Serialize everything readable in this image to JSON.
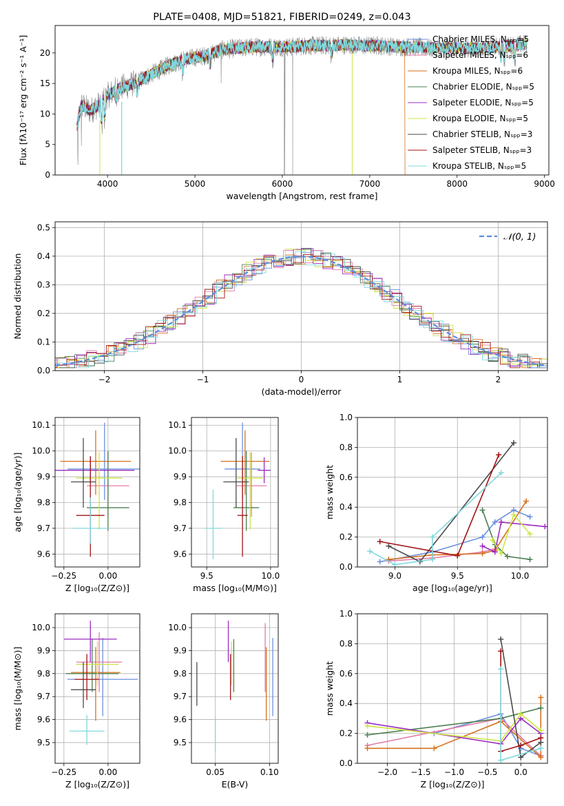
{
  "chart_data": [
    {
      "id": "spectrum",
      "type": "line",
      "title": "PLATE=0408, MJD=51821, FIBERID=0249, z=0.043",
      "xlabel": "wavelength [Angstrom, rest frame]",
      "ylabel": "Flux [fλ10⁻¹⁷ erg cm⁻² s⁻¹ A⁻¹]",
      "xlim": [
        3400,
        9050
      ],
      "ylim": [
        0,
        24.5
      ],
      "xticks": [
        4000,
        5000,
        6000,
        7000,
        8000,
        9000
      ],
      "yticks": [
        0,
        5,
        10,
        15,
        20
      ],
      "grid": false,
      "legend_position": "top-right",
      "series": [
        {
          "name": "Chabrier MILES, Nₛₚₚ=5",
          "color": "#6a8fde"
        },
        {
          "name": "Salpeter MILES, Nₛₚₚ=6",
          "color": "#e37aa6"
        },
        {
          "name": "Kroupa MILES, Nₛₚₚ=6",
          "color": "#d5701c"
        },
        {
          "name": "Chabrier ELODIE, Nₛₚₚ=5",
          "color": "#4b7f52"
        },
        {
          "name": "Salpeter ELODIE, Nₛₚₚ=5",
          "color": "#9b2bc1"
        },
        {
          "name": "Kroupa ELODIE, Nₛₚₚ=5",
          "color": "#cde645"
        },
        {
          "name": "Chabrier STELIB, Nₛₚₚ=3",
          "color": "#4a4a4a"
        },
        {
          "name": "Salpeter STELIB, Nₛₚₚ=3",
          "color": "#a11313"
        },
        {
          "name": "Kroupa STELIB, Nₛₚₚ=5",
          "color": "#7fd8dd"
        }
      ],
      "continuum": {
        "x": [
          3650,
          3700,
          3800,
          3900,
          4000,
          4100,
          4200,
          4300,
          4500,
          4700,
          4900,
          5100,
          5300,
          5500,
          5700,
          5900,
          6100,
          6300,
          6500,
          6700,
          6900,
          7100,
          7300,
          7500,
          7700,
          7900,
          8100,
          8300,
          8500,
          8800
        ],
        "y": [
          8.0,
          11.5,
          10.5,
          11.5,
          13.0,
          14.0,
          14.5,
          15.0,
          16.5,
          18.0,
          19.0,
          19.5,
          20.5,
          20.8,
          21.0,
          21.0,
          21.0,
          21.2,
          21.2,
          21.3,
          21.2,
          21.2,
          21.0,
          21.0,
          20.8,
          20.8,
          20.8,
          20.8,
          21.0,
          21.5
        ]
      },
      "truncated_series": [
        {
          "series": "Kroupa MILES, Nₛₚₚ=6",
          "x_end": 7400
        }
      ]
    },
    {
      "id": "residuals",
      "type": "histogram",
      "xlabel": "(data-model)/error",
      "ylabel": "Normed distribution",
      "xlim": [
        -2.5,
        2.5
      ],
      "ylim": [
        0,
        0.52
      ],
      "xticks": [
        -2,
        -1,
        0,
        1,
        2
      ],
      "yticks": [
        0.0,
        0.1,
        0.2,
        0.3,
        0.4,
        0.5
      ],
      "grid": true,
      "legend_position": "top-right",
      "bin_width": 0.1,
      "reference_curve": {
        "name": "𝒩(0, 1)",
        "color": "#5b8cde",
        "style": "dashed"
      }
    },
    {
      "id": "age-vs-Z",
      "type": "errorbar",
      "xlabel": "Z [log₁₀(Z/Z⊙)]",
      "ylabel": "age  [log₁₀(age/yr)]",
      "xlim": [
        -0.3,
        0.18
      ],
      "ylim": [
        9.55,
        10.13
      ],
      "xticks": [
        -0.25,
        0.0
      ],
      "yticks": [
        9.6,
        9.7,
        9.8,
        9.9,
        10.0,
        10.1
      ],
      "grid": true,
      "points": [
        {
          "color": "#6a8fde",
          "x": -0.02,
          "xerr": 0.21,
          "y": 9.93,
          "yerr": [
            0.12,
            0.18
          ]
        },
        {
          "color": "#e37aa6",
          "x": 0.0,
          "xerr": 0.12,
          "y": 9.865,
          "yerr": [
            0.12,
            0.13
          ]
        },
        {
          "color": "#d5701c",
          "x": -0.07,
          "xerr": 0.2,
          "y": 9.96,
          "yerr": [
            0.13,
            0.12
          ]
        },
        {
          "color": "#4b7f52",
          "x": 0.0,
          "xerr": 0.12,
          "y": 9.78,
          "yerr": [
            0.09,
            0.22
          ]
        },
        {
          "color": "#9b2bc1",
          "x": -0.1,
          "xerr": 0.25,
          "y": 9.925,
          "yerr": [
            0.05,
            0.05
          ]
        },
        {
          "color": "#cde645",
          "x": -0.05,
          "xerr": 0.13,
          "y": 9.895,
          "yerr": [
            0.2,
            0.1
          ]
        },
        {
          "color": "#4a4a4a",
          "x": -0.14,
          "xerr": 0.07,
          "y": 9.88,
          "yerr": [
            0.1,
            0.17
          ]
        },
        {
          "color": "#a11313",
          "x": -0.1,
          "xerr": 0.08,
          "y": 9.75,
          "yerr": [
            0.16,
            0.23
          ]
        },
        {
          "color": "#7fd8dd",
          "x": -0.1,
          "xerr": 0.1,
          "y": 9.7,
          "yerr": [
            0.06,
            0.12
          ]
        }
      ]
    },
    {
      "id": "age-vs-mass",
      "type": "errorbar",
      "xlabel": "mass [log₁₀(M/M⊙)]",
      "ylabel": "",
      "xlim": [
        9.38,
        10.06
      ],
      "ylim": [
        9.55,
        10.13
      ],
      "xticks": [
        9.5,
        10.0
      ],
      "yticks": [
        9.6,
        9.7,
        9.8,
        9.9,
        10.0,
        10.1
      ],
      "grid": true,
      "points": [
        {
          "color": "#6a8fde",
          "x": 9.78,
          "xerr": 0.14,
          "y": 9.93,
          "yerr": [
            0.12,
            0.18
          ]
        },
        {
          "color": "#e37aa6",
          "x": 9.85,
          "xerr": 0.12,
          "y": 9.865,
          "yerr": [
            0.12,
            0.13
          ]
        },
        {
          "color": "#d5701c",
          "x": 9.8,
          "xerr": 0.19,
          "y": 9.96,
          "yerr": [
            0.13,
            0.12
          ]
        },
        {
          "color": "#4b7f52",
          "x": 9.81,
          "xerr": 0.1,
          "y": 9.78,
          "yerr": [
            0.09,
            0.22
          ]
        },
        {
          "color": "#9b2bc1",
          "x": 9.95,
          "xerr": 0.05,
          "y": 9.925,
          "yerr": [
            0.05,
            0.05
          ]
        },
        {
          "color": "#cde645",
          "x": 9.84,
          "xerr": 0.1,
          "y": 9.895,
          "yerr": [
            0.2,
            0.1
          ]
        },
        {
          "color": "#4a4a4a",
          "x": 9.73,
          "xerr": 0.1,
          "y": 9.88,
          "yerr": [
            0.1,
            0.17
          ]
        },
        {
          "color": "#a11313",
          "x": 9.78,
          "xerr": 0.04,
          "y": 9.75,
          "yerr": [
            0.16,
            0.23
          ]
        },
        {
          "color": "#7fd8dd",
          "x": 9.55,
          "xerr": 0.07,
          "y": 9.7,
          "yerr": [
            0.12,
            0.15
          ]
        }
      ]
    },
    {
      "id": "mass-weight-vs-age",
      "type": "line",
      "xlabel": "age  [log₁₀(age/yr)]",
      "ylabel": "mass weight",
      "xlim": [
        8.7,
        10.22
      ],
      "ylim": [
        0,
        1
      ],
      "xticks": [
        9.0,
        9.5,
        10.0
      ],
      "yticks": [
        0.0,
        0.2,
        0.4,
        0.6,
        0.8,
        1.0
      ],
      "grid": true,
      "marker": "+",
      "series": [
        {
          "color": "#6a8fde",
          "x": [
            8.88,
            9.3,
            9.7,
            9.8,
            9.95,
            10.08
          ],
          "y": [
            0.035,
            0.1,
            0.2,
            0.3,
            0.38,
            0.335
          ]
        },
        {
          "color": "#e37aa6",
          "x": [
            8.95,
            9.3,
            9.7,
            9.8
          ],
          "y": [
            0.04,
            0.06,
            0.1,
            0.12
          ]
        },
        {
          "color": "#d5701c",
          "x": [
            8.95,
            9.3,
            9.7,
            9.8,
            10.05
          ],
          "y": [
            0.05,
            0.08,
            0.09,
            0.11,
            0.44
          ]
        },
        {
          "color": "#4b7f52",
          "x": [
            9.7,
            9.8,
            9.9,
            10.08
          ],
          "y": [
            0.38,
            0.15,
            0.07,
            0.05
          ]
        },
        {
          "color": "#9b2bc1",
          "x": [
            9.7,
            9.8,
            9.85,
            10.2
          ],
          "y": [
            0.14,
            0.1,
            0.3,
            0.27
          ]
        },
        {
          "color": "#cde645",
          "x": [
            9.78,
            9.85,
            9.95,
            10.08
          ],
          "y": [
            0.18,
            0.09,
            0.35,
            0.22
          ]
        },
        {
          "color": "#4a4a4a",
          "x": [
            8.95,
            9.2,
            9.95
          ],
          "y": [
            0.14,
            0.035,
            0.83
          ]
        },
        {
          "color": "#a11313",
          "x": [
            8.88,
            9.5,
            9.83
          ],
          "y": [
            0.17,
            0.075,
            0.75
          ]
        },
        {
          "color": "#7fd8dd",
          "x": [
            8.8,
            9.0,
            9.3,
            9.3,
            9.85
          ],
          "y": [
            0.105,
            0.015,
            0.05,
            0.2,
            0.63
          ]
        }
      ]
    },
    {
      "id": "mass-vs-Z",
      "type": "errorbar",
      "xlabel": "Z [log₁₀(Z/Z⊙)]",
      "ylabel": "mass [log₁₀(M/M⊙)]",
      "xlim": [
        -0.3,
        0.18
      ],
      "ylim": [
        9.41,
        10.06
      ],
      "xticks": [
        -0.25,
        0.0
      ],
      "yticks": [
        9.5,
        9.6,
        9.7,
        9.8,
        9.9,
        10.0
      ],
      "grid": true,
      "points": [
        {
          "color": "#6a8fde",
          "x": -0.03,
          "xerr": 0.2,
          "y": 9.775,
          "yerr": [
            0.16,
            0.18
          ]
        },
        {
          "color": "#e37aa6",
          "x": -0.05,
          "xerr": 0.13,
          "y": 9.85,
          "yerr": [
            0.13,
            0.13
          ]
        },
        {
          "color": "#d5701c",
          "x": -0.07,
          "xerr": 0.14,
          "y": 9.805,
          "yerr": [
            0.21,
            0.11
          ]
        },
        {
          "color": "#4b7f52",
          "x": -0.09,
          "xerr": 0.15,
          "y": 9.8,
          "yerr": [
            0.08,
            0.15
          ]
        },
        {
          "color": "#9b2bc1",
          "x": -0.1,
          "xerr": 0.15,
          "y": 9.95,
          "yerr": [
            0.1,
            0.08
          ]
        },
        {
          "color": "#cde645",
          "x": -0.06,
          "xerr": 0.12,
          "y": 9.84,
          "yerr": [
            0.09,
            0.1
          ]
        },
        {
          "color": "#4a4a4a",
          "x": -0.14,
          "xerr": 0.07,
          "y": 9.73,
          "yerr": [
            0.08,
            0.12
          ]
        },
        {
          "color": "#a11313",
          "x": -0.12,
          "xerr": 0.07,
          "y": 9.775,
          "yerr": [
            0.09,
            0.11
          ]
        },
        {
          "color": "#7fd8dd",
          "x": -0.12,
          "xerr": 0.1,
          "y": 9.55,
          "yerr": [
            0.06,
            0.07
          ]
        }
      ]
    },
    {
      "id": "mass-vs-EBV",
      "type": "errorbar",
      "xlabel": "E(B-V)",
      "ylabel": "",
      "xlim": [
        0.028,
        0.108
      ],
      "ylim": [
        9.41,
        10.06
      ],
      "xticks": [
        0.05,
        0.1
      ],
      "yticks": [
        9.5,
        9.6,
        9.7,
        9.8,
        9.9,
        10.0
      ],
      "grid": true,
      "points": [
        {
          "color": "#6a8fde",
          "x": 0.103,
          "y": 9.775,
          "yerr": [
            0.16,
            0.18
          ]
        },
        {
          "color": "#e37aa6",
          "x": 0.096,
          "y": 9.85,
          "yerr": [
            0.13,
            0.17
          ]
        },
        {
          "color": "#d5701c",
          "x": 0.097,
          "y": 9.805,
          "yerr": [
            0.21,
            0.11
          ]
        },
        {
          "color": "#4b7f52",
          "x": 0.067,
          "y": 9.8,
          "yerr": [
            0.08,
            0.15
          ]
        },
        {
          "color": "#9b2bc1",
          "x": 0.062,
          "y": 9.95,
          "yerr": [
            0.1,
            0.08
          ]
        },
        {
          "color": "#cde645",
          "x": 0.065,
          "y": 9.84,
          "yerr": [
            0.09,
            0.1
          ]
        },
        {
          "color": "#4a4a4a",
          "x": 0.033,
          "y": 9.76,
          "yerr": [
            0.1,
            0.09
          ]
        },
        {
          "color": "#a11313",
          "x": 0.064,
          "y": 9.775,
          "yerr": [
            0.09,
            0.11
          ]
        },
        {
          "color": "#7fd8dd",
          "x": 0.05,
          "y": 9.55,
          "yerr": [
            0.09,
            0.06
          ]
        }
      ]
    },
    {
      "id": "mass-weight-vs-Z",
      "type": "line",
      "xlabel": "Z [log₁₀(Z/Z⊙)]",
      "ylabel": "mass weight",
      "xlim": [
        -2.45,
        0.4
      ],
      "ylim": [
        0,
        1
      ],
      "xticks": [
        -2.0,
        -1.5,
        -1.0,
        -0.5,
        0.0
      ],
      "yticks": [
        0.0,
        0.2,
        0.4,
        0.6,
        0.8,
        1.0
      ],
      "grid": true,
      "marker": "+",
      "series": [
        {
          "color": "#6a8fde",
          "x": [
            -1.3,
            -0.3,
            0.0,
            0.3
          ],
          "y": [
            0.2,
            0.33,
            0.1,
            0.05
          ]
        },
        {
          "color": "#e37aa6",
          "x": [
            -2.3,
            -0.3,
            0.3
          ],
          "y": [
            0.12,
            0.3,
            0.05
          ]
        },
        {
          "color": "#d5701c",
          "x": [
            -2.3,
            -1.3,
            -0.3,
            0.3,
            0.3
          ],
          "y": [
            0.1,
            0.1,
            0.28,
            0.04,
            0.44
          ]
        },
        {
          "color": "#4b7f52",
          "x": [
            -2.3,
            -0.3,
            0.3
          ],
          "y": [
            0.19,
            0.3,
            0.37
          ]
        },
        {
          "color": "#9b2bc1",
          "x": [
            -2.3,
            -0.3,
            0.0,
            0.3
          ],
          "y": [
            0.27,
            0.13,
            0.3,
            0.2
          ]
        },
        {
          "color": "#cde645",
          "x": [
            -2.3,
            -0.3,
            0.0,
            0.3
          ],
          "y": [
            0.25,
            0.15,
            0.33,
            0.22
          ]
        },
        {
          "color": "#4a4a4a",
          "x": [
            -0.3,
            0.0,
            0.3
          ],
          "y": [
            0.83,
            0.04,
            0.14
          ]
        },
        {
          "color": "#a11313",
          "x": [
            -0.3,
            -0.3,
            0.0,
            0.3
          ],
          "y": [
            0.75,
            0.08,
            0.12,
            0.17
          ]
        },
        {
          "color": "#7fd8dd",
          "x": [
            -0.3,
            -0.3,
            0.3
          ],
          "y": [
            0.63,
            0.02,
            0.1
          ]
        }
      ]
    }
  ]
}
